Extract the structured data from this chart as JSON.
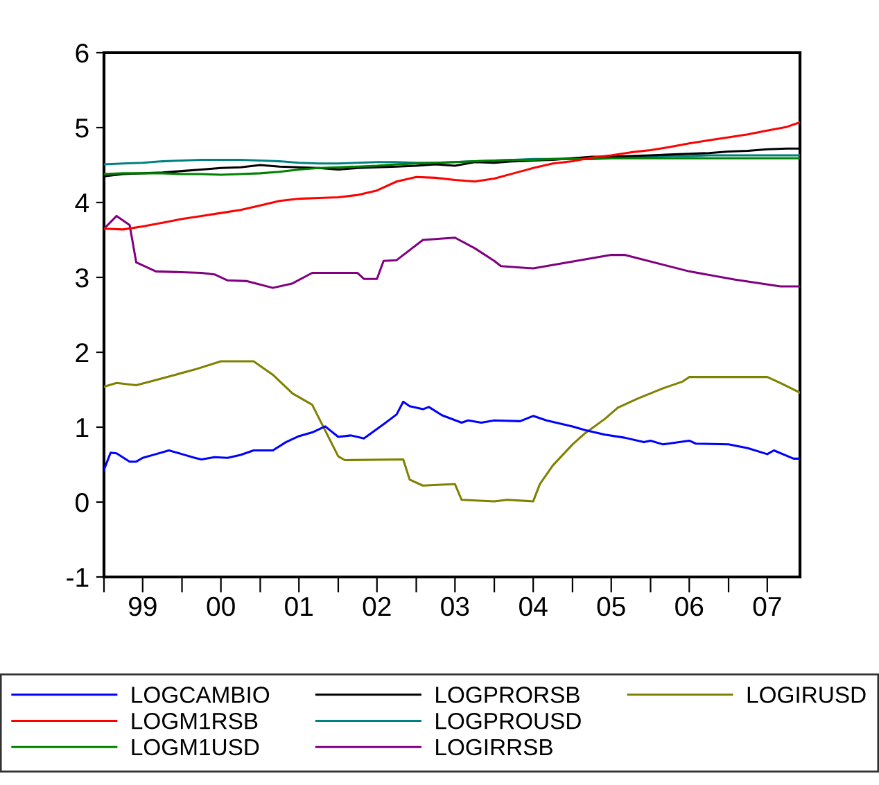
{
  "chart_data": {
    "type": "line",
    "xlim": [
      "1999-01",
      "2007-12"
    ],
    "ylim": [
      -1,
      6
    ],
    "yticks": [
      -1,
      0,
      1,
      2,
      3,
      4,
      5,
      6
    ],
    "xticks": [
      {
        "value": "1999-01",
        "label": null
      },
      {
        "value": "1999-07",
        "label": "99"
      },
      {
        "value": "2000-01",
        "label": null
      },
      {
        "value": "2000-07",
        "label": "00"
      },
      {
        "value": "2001-01",
        "label": null
      },
      {
        "value": "2001-07",
        "label": "01"
      },
      {
        "value": "2002-01",
        "label": null
      },
      {
        "value": "2002-07",
        "label": "02"
      },
      {
        "value": "2003-01",
        "label": null
      },
      {
        "value": "2003-07",
        "label": "03"
      },
      {
        "value": "2004-01",
        "label": null
      },
      {
        "value": "2004-07",
        "label": "04"
      },
      {
        "value": "2005-01",
        "label": null
      },
      {
        "value": "2005-07",
        "label": "05"
      },
      {
        "value": "2006-01",
        "label": null
      },
      {
        "value": "2006-07",
        "label": "06"
      },
      {
        "value": "2007-01",
        "label": null
      },
      {
        "value": "2007-07",
        "label": "07"
      }
    ],
    "legend": "bottom",
    "grid": false,
    "marker": "none",
    "line_style": "solid",
    "x": [
      "1999-01",
      "1999-04",
      "1999-07",
      "1999-10",
      "2000-01",
      "2000-04",
      "2000-07",
      "2000-10",
      "2001-01",
      "2001-04",
      "2001-07",
      "2001-10",
      "2002-01",
      "2002-04",
      "2002-07",
      "2002-10",
      "2003-01",
      "2003-04",
      "2003-07",
      "2003-10",
      "2004-01",
      "2004-04",
      "2004-07",
      "2004-10",
      "2005-01",
      "2005-04",
      "2005-07",
      "2005-10",
      "2006-01",
      "2006-04",
      "2006-07",
      "2006-10",
      "2007-01",
      "2007-04",
      "2007-07",
      "2007-10",
      "2007-12"
    ],
    "series": [
      {
        "name": "LOGCAMBIO",
        "color": "#0000ff",
        "x": [
          "1999-01",
          "1999-02",
          "1999-03",
          "1999-05",
          "1999-06",
          "1999-07",
          "1999-09",
          "1999-11",
          "2000-01",
          "2000-03",
          "2000-04",
          "2000-06",
          "2000-08",
          "2000-10",
          "2000-12",
          "2001-03",
          "2001-05",
          "2001-07",
          "2001-09",
          "2001-11",
          "2002-01",
          "2002-03",
          "2002-05",
          "2002-08",
          "2002-10",
          "2002-11",
          "2002-12",
          "2003-02",
          "2003-03",
          "2003-05",
          "2003-08",
          "2003-09",
          "2003-11",
          "2004-01",
          "2004-05",
          "2004-07",
          "2004-09",
          "2005-01",
          "2005-03",
          "2005-06",
          "2005-09",
          "2005-12",
          "2006-01",
          "2006-03",
          "2006-07",
          "2006-08",
          "2007-01",
          "2007-04",
          "2007-07",
          "2007-08",
          "2007-11",
          "2007-12"
        ],
        "values": [
          0.43,
          0.66,
          0.65,
          0.54,
          0.54,
          0.59,
          0.64,
          0.69,
          0.64,
          0.59,
          0.57,
          0.6,
          0.59,
          0.63,
          0.69,
          0.69,
          0.8,
          0.88,
          0.93,
          1.01,
          0.87,
          0.89,
          0.85,
          1.04,
          1.17,
          1.34,
          1.28,
          1.24,
          1.27,
          1.16,
          1.06,
          1.09,
          1.06,
          1.09,
          1.08,
          1.15,
          1.09,
          1.01,
          0.96,
          0.9,
          0.86,
          0.8,
          0.82,
          0.77,
          0.82,
          0.78,
          0.77,
          0.72,
          0.64,
          0.69,
          0.58,
          0.58
        ]
      },
      {
        "name": "LOGM1RSB",
        "color": "#ff0000",
        "values": [
          3.65,
          3.64,
          3.68,
          3.73,
          3.78,
          3.82,
          3.86,
          3.9,
          3.96,
          4.02,
          4.05,
          4.06,
          4.07,
          4.1,
          4.16,
          4.28,
          4.34,
          4.33,
          4.3,
          4.28,
          4.32,
          4.39,
          4.46,
          4.52,
          4.55,
          4.6,
          4.63,
          4.67,
          4.7,
          4.74,
          4.79,
          4.83,
          4.87,
          4.91,
          4.96,
          5.01,
          5.07
        ]
      },
      {
        "name": "LOGM1USD",
        "color": "#008000",
        "values": [
          4.38,
          4.39,
          4.39,
          4.39,
          4.38,
          4.38,
          4.37,
          4.38,
          4.39,
          4.41,
          4.44,
          4.46,
          4.47,
          4.48,
          4.49,
          4.51,
          4.52,
          4.53,
          4.54,
          4.55,
          4.56,
          4.57,
          4.57,
          4.58,
          4.58,
          4.58,
          4.59,
          4.59,
          4.59,
          4.59,
          4.59,
          4.59,
          4.59,
          4.59,
          4.59,
          4.59,
          4.59
        ]
      },
      {
        "name": "LOGPRORSB",
        "color": "#000000",
        "values": [
          4.35,
          4.38,
          4.39,
          4.4,
          4.42,
          4.44,
          4.46,
          4.47,
          4.5,
          4.48,
          4.47,
          4.46,
          4.44,
          4.46,
          4.47,
          4.48,
          4.49,
          4.51,
          4.49,
          4.54,
          4.53,
          4.55,
          4.56,
          4.57,
          4.59,
          4.61,
          4.61,
          4.62,
          4.63,
          4.64,
          4.65,
          4.66,
          4.68,
          4.69,
          4.71,
          4.72,
          4.72
        ]
      },
      {
        "name": "LOGPROUSD",
        "color": "#008080",
        "values": [
          4.51,
          4.52,
          4.53,
          4.55,
          4.56,
          4.57,
          4.57,
          4.57,
          4.56,
          4.55,
          4.53,
          4.52,
          4.52,
          4.53,
          4.54,
          4.54,
          4.53,
          4.53,
          4.54,
          4.55,
          4.56,
          4.57,
          4.58,
          4.58,
          4.59,
          4.6,
          4.6,
          4.6,
          4.61,
          4.62,
          4.62,
          4.63,
          4.63,
          4.63,
          4.63,
          4.63,
          4.63
        ]
      },
      {
        "name": "LOGIRRSB",
        "color": "#800080",
        "x": [
          "1999-01",
          "1999-03",
          "1999-05",
          "1999-06",
          "1999-09",
          "2000-04",
          "2000-06",
          "2000-08",
          "2000-11",
          "2001-03",
          "2001-06",
          "2001-09",
          "2002-04",
          "2002-05",
          "2002-07",
          "2002-08",
          "2002-10",
          "2003-02",
          "2003-07",
          "2003-10",
          "2004-01",
          "2004-02",
          "2004-07",
          "2005-07",
          "2005-09",
          "2006-07",
          "2007-02",
          "2007-09",
          "2007-12"
        ],
        "values": [
          3.65,
          3.82,
          3.7,
          3.2,
          3.08,
          3.06,
          3.04,
          2.96,
          2.95,
          2.86,
          2.92,
          3.06,
          3.06,
          2.98,
          2.98,
          3.22,
          3.23,
          3.5,
          3.53,
          3.39,
          3.22,
          3.15,
          3.12,
          3.3,
          3.3,
          3.08,
          2.97,
          2.88,
          2.88
        ]
      },
      {
        "name": "LOGIRUSD",
        "color": "#808000",
        "x": [
          "1999-01",
          "1999-03",
          "1999-06",
          "1999-09",
          "1999-12",
          "2000-03",
          "2000-07",
          "2000-12",
          "2001-03",
          "2001-06",
          "2001-09",
          "2002-01",
          "2002-02",
          "2002-11",
          "2002-12",
          "2003-02",
          "2003-07",
          "2003-08",
          "2004-01",
          "2004-03",
          "2004-07",
          "2004-08",
          "2004-10",
          "2005-01",
          "2005-03",
          "2005-06",
          "2005-08",
          "2005-11",
          "2006-03",
          "2006-06",
          "2006-07",
          "2007-07",
          "2007-09",
          "2007-12"
        ],
        "values": [
          1.54,
          1.59,
          1.56,
          1.63,
          1.7,
          1.77,
          1.88,
          1.88,
          1.7,
          1.45,
          1.3,
          0.61,
          0.56,
          0.57,
          0.3,
          0.22,
          0.24,
          0.03,
          0.01,
          0.03,
          0.01,
          0.24,
          0.49,
          0.77,
          0.92,
          1.11,
          1.26,
          1.38,
          1.52,
          1.61,
          1.67,
          1.67,
          1.59,
          1.46
        ]
      }
    ]
  }
}
